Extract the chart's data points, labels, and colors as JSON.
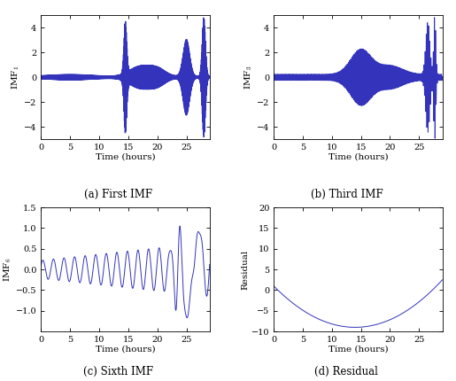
{
  "line_color": "#3333bb",
  "line_width": 0.7,
  "background_color": "#ffffff",
  "xlim": [
    0,
    29
  ],
  "xticks": [
    0,
    5,
    10,
    15,
    20,
    25
  ],
  "xlabel": "Time (hours)",
  "subplots": [
    {
      "label": "(a) First IMF",
      "ylabel": "IMF$_1$",
      "ylim": [
        -5,
        5
      ],
      "yticks": [
        -4,
        -2,
        0,
        2,
        4
      ]
    },
    {
      "label": "(b) Third IMF",
      "ylabel": "IMF$_3$",
      "ylim": [
        -5,
        5
      ],
      "yticks": [
        -4,
        -2,
        0,
        2,
        4
      ]
    },
    {
      "label": "(c) Sixth IMF",
      "ylabel": "IMF$_6$",
      "ylim": [
        -1.5,
        1.5
      ],
      "yticks": [
        -1,
        -0.5,
        0,
        0.5,
        1,
        1.5
      ]
    },
    {
      "label": "(d) Residual",
      "ylabel": "Residual",
      "ylim": [
        -10,
        20
      ],
      "yticks": [
        -10,
        -5,
        0,
        5,
        10,
        15,
        20
      ]
    }
  ],
  "font_size": 7.5,
  "caption_font_size": 8.5,
  "tick_font_size": 7
}
